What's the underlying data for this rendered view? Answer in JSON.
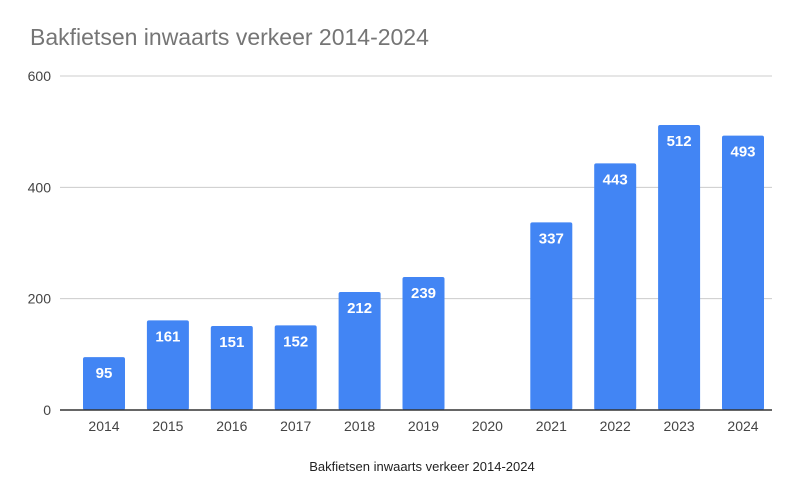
{
  "chart_data": {
    "type": "bar",
    "title": "Bakfietsen inwaarts verkeer 2014-2024",
    "xlabel": "Bakfietsen inwaarts verkeer 2014-2024",
    "ylabel": "",
    "categories": [
      "2014",
      "2015",
      "2016",
      "2017",
      "2018",
      "2019",
      "2020",
      "2021",
      "2022",
      "2023",
      "2024"
    ],
    "series": [
      {
        "values": [
          95,
          161,
          151,
          152,
          212,
          239,
          null,
          337,
          443,
          512,
          493
        ]
      }
    ],
    "data_labels": [
      "95",
      "161",
      "151",
      "152",
      "212",
      "239",
      "",
      "337",
      "443",
      "512",
      "493"
    ],
    "ylim": [
      0,
      600
    ],
    "yticks": [
      0,
      200,
      400,
      600
    ],
    "ytick_labels": [
      "0",
      "200",
      "400",
      "600"
    ],
    "grid": true,
    "legend": "none",
    "colors": {
      "bar": "#4285f4",
      "grid": "#cccccc",
      "baseline": "#333333",
      "title": "#757575"
    }
  }
}
